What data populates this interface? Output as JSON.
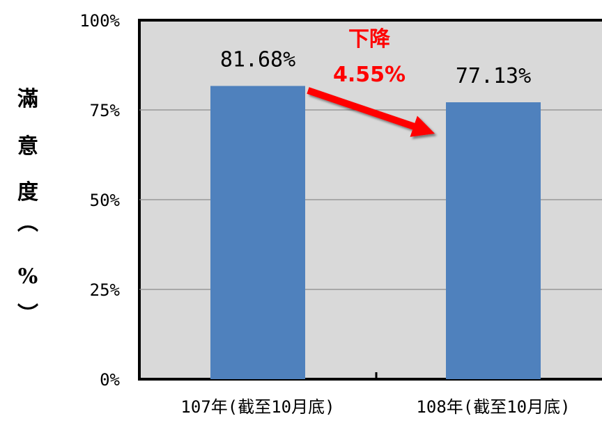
{
  "chart_data": {
    "type": "bar",
    "categories": [
      "107年(截至10月底)",
      "108年(截至10月底)"
    ],
    "values": [
      81.68,
      77.13
    ],
    "data_labels": [
      "81.68%",
      "77.13%"
    ],
    "ylabel": "滿意度(%)",
    "ylabel_chars": [
      "滿",
      "意",
      "度",
      "︵",
      "%",
      "︶"
    ],
    "ylim": [
      0,
      100
    ],
    "yticks": [
      0,
      25,
      50,
      75,
      100
    ],
    "ytick_labels": [
      "0%",
      "25%",
      "50%",
      "75%",
      "100%"
    ],
    "grid": true,
    "bar_color": "#4f81bd",
    "plot_background": "#d9d9d9",
    "annotation": {
      "line1": "下降",
      "line2": "4.55%",
      "color": "#ff0000",
      "arrow": "from first bar to second bar"
    }
  }
}
